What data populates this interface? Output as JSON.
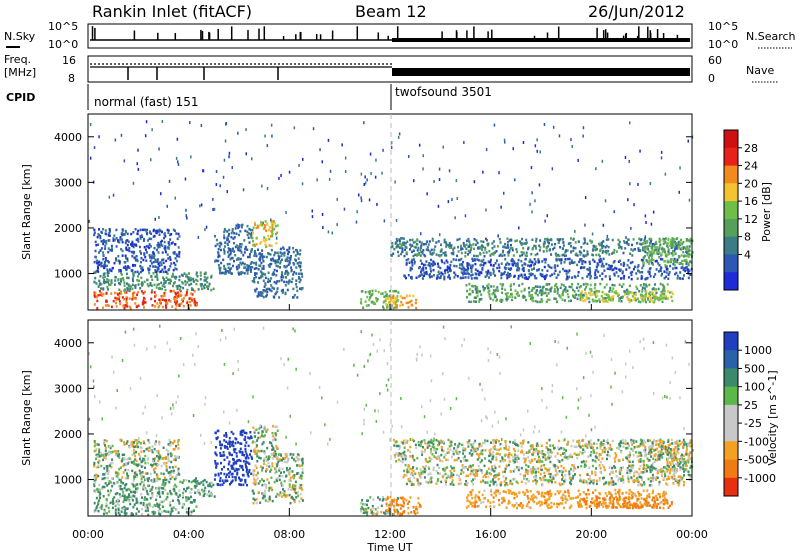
{
  "header": {
    "station": "Rankin Inlet (fitACF)",
    "beam": "Beam 12",
    "date": "26/Jun/2012"
  },
  "strips": {
    "nsky_label": "N.Sky",
    "nsearch_label": "N.Search",
    "nsky_ticks": [
      "10^5",
      "10^0"
    ],
    "nsearch_ticks": [
      "10^5",
      "10^0"
    ],
    "freq_label": "Freq.",
    "freq_unit": "[MHz]",
    "freq_ticks": [
      "16",
      "8"
    ],
    "nave_label": "Nave",
    "nave_ticks": [
      "60",
      "0"
    ],
    "cpid_label": "CPID",
    "cpid_segments": [
      {
        "label": "normal (fast) 151",
        "start_hour": 0,
        "end_hour": 12
      },
      {
        "label": "twofsound 3501",
        "start_hour": 12,
        "end_hour": 24
      }
    ]
  },
  "chart_data": [
    {
      "type": "heatmap",
      "name": "power",
      "ylabel": "Slant Range [km]",
      "xlabel": "Time UT",
      "xlim": [
        0,
        24
      ],
      "ylim": [
        200,
        4500
      ],
      "y_ticks": [
        "1000",
        "2000",
        "3000",
        "4000"
      ],
      "y_tick_values": [
        1000,
        2000,
        3000,
        4000
      ],
      "colorbar": {
        "label": "Power [dB]",
        "ticks": [
          "4",
          "8",
          "12",
          "16",
          "20",
          "24",
          "28"
        ],
        "colors": [
          "#1f2bd9",
          "#2c57b5",
          "#3a7d86",
          "#55a05a",
          "#6fbe4a",
          "#f2c530",
          "#f28a1c",
          "#e8221a",
          "#d01010"
        ]
      },
      "regions": [
        {
          "t0": 0.2,
          "t1": 4.3,
          "r0": 250,
          "r1": 650,
          "value": 28
        },
        {
          "t0": 0.2,
          "t1": 5.0,
          "r0": 650,
          "r1": 1050,
          "value": 12
        },
        {
          "t0": 0.2,
          "t1": 3.6,
          "r0": 1050,
          "r1": 2000,
          "value": 6
        },
        {
          "t0": 5.0,
          "t1": 6.5,
          "r0": 1000,
          "r1": 2100,
          "value": 8
        },
        {
          "t0": 6.5,
          "t1": 7.5,
          "r0": 1600,
          "r1": 2200,
          "value": 22
        },
        {
          "t0": 6.5,
          "t1": 8.5,
          "r0": 500,
          "r1": 1600,
          "value": 8
        },
        {
          "t0": 10.8,
          "t1": 12.3,
          "r0": 250,
          "r1": 650,
          "value": 16
        },
        {
          "t0": 11.8,
          "t1": 13.0,
          "r0": 250,
          "r1": 550,
          "value": 24
        },
        {
          "t0": 12.0,
          "t1": 24.0,
          "r0": 1400,
          "r1": 1800,
          "value": 10
        },
        {
          "t0": 12.5,
          "t1": 24.0,
          "r0": 900,
          "r1": 1350,
          "value": 6
        },
        {
          "t0": 15.0,
          "t1": 23.0,
          "r0": 400,
          "r1": 800,
          "value": 14
        },
        {
          "t0": 19.5,
          "t1": 23.2,
          "r0": 400,
          "r1": 650,
          "value": 20
        },
        {
          "t0": 22.0,
          "t1": 24.0,
          "r0": 1200,
          "r1": 1800,
          "value": 16
        }
      ]
    },
    {
      "type": "heatmap",
      "name": "velocity",
      "ylabel": "Slant Range [km]",
      "xlabel": "Time UT",
      "xlim": [
        0,
        24
      ],
      "ylim": [
        200,
        4500
      ],
      "y_ticks": [
        "1000",
        "2000",
        "3000",
        "4000"
      ],
      "y_tick_values": [
        1000,
        2000,
        3000,
        4000
      ],
      "colorbar": {
        "label": "Velocity [m s^-1]",
        "ticks": [
          "1000",
          "500",
          "100",
          "25",
          "-25",
          "-100",
          "-500",
          "-1000"
        ],
        "colors": [
          "#1f3fbf",
          "#2a62a8",
          "#3d8a6a",
          "#5cb84a",
          "#c8c8c8",
          "#c8c8c8",
          "#f4a020",
          "#f07b12",
          "#e83010"
        ]
      },
      "regions": [
        {
          "t0": 0.2,
          "t1": 4.3,
          "r0": 250,
          "r1": 650,
          "value": 100
        },
        {
          "t0": 0.2,
          "t1": 5.0,
          "r0": 650,
          "r1": 1050,
          "value": 100
        },
        {
          "t0": 0.2,
          "t1": 3.6,
          "r0": 1050,
          "r1": 1900,
          "value": 25
        },
        {
          "t0": 5.0,
          "t1": 6.5,
          "r0": 900,
          "r1": 2100,
          "value": 1000
        },
        {
          "t0": 6.5,
          "t1": 7.5,
          "r0": 1600,
          "r1": 2200,
          "value": 0
        },
        {
          "t0": 6.5,
          "t1": 8.5,
          "r0": 500,
          "r1": 1600,
          "value": 25
        },
        {
          "t0": 10.8,
          "t1": 12.3,
          "r0": 250,
          "r1": 650,
          "value": 50
        },
        {
          "t0": 11.8,
          "t1": 13.2,
          "r0": 250,
          "r1": 650,
          "value": -300
        },
        {
          "t0": 12.0,
          "t1": 24.0,
          "r0": 1400,
          "r1": 1900,
          "value": 0
        },
        {
          "t0": 12.5,
          "t1": 24.0,
          "r0": 900,
          "r1": 1350,
          "value": 0
        },
        {
          "t0": 15.0,
          "t1": 23.0,
          "r0": 400,
          "r1": 800,
          "value": -200
        },
        {
          "t0": 19.5,
          "t1": 23.2,
          "r0": 400,
          "r1": 650,
          "value": -400
        },
        {
          "t0": 22.0,
          "t1": 24.0,
          "r0": 1200,
          "r1": 1900,
          "value": 0
        }
      ]
    }
  ],
  "x_axis": {
    "label": "Time UT",
    "ticks": [
      "00:00",
      "04:00",
      "08:00",
      "12:00",
      "16:00",
      "20:00",
      "00:00"
    ],
    "tick_hours": [
      0,
      4,
      8,
      12,
      16,
      20,
      24
    ]
  }
}
